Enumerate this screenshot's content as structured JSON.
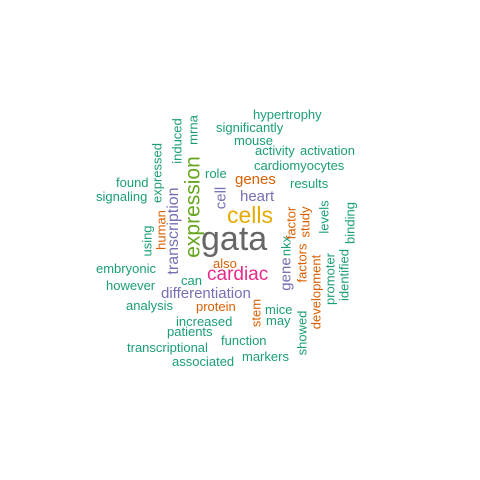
{
  "colors": {
    "teal": "#1b9e77",
    "orange": "#d95f02",
    "purple": "#7570b3",
    "magenta": "#e7298a",
    "green": "#66a61e",
    "gold": "#e6ab02",
    "gray": "#666666"
  },
  "words": {
    "gata": "gata",
    "cells": "cells",
    "expression": "expression",
    "cardiac": "cardiac",
    "transcription": "transcription",
    "differentiation": "differentiation",
    "heart": "heart",
    "genes": "genes",
    "cell": "cell",
    "gene": "gene",
    "hypertrophy": "hypertrophy",
    "significantly": "significantly",
    "mouse": "mouse",
    "activity": "activity",
    "activation": "activation",
    "cardiomyocytes": "cardiomyocytes",
    "role": "role",
    "results": "results",
    "found": "found",
    "signaling": "signaling",
    "also": "also",
    "embryonic": "embryonic",
    "can": "can",
    "however": "however",
    "analysis": "analysis",
    "protein": "protein",
    "mice": "mice",
    "increased": "increased",
    "may": "may",
    "patients": "patients",
    "function": "function",
    "transcriptional": "transcriptional",
    "markers": "markers",
    "associated": "associated",
    "nkx": "nkx",
    "factor": "factor",
    "factors": "factors",
    "study": "study",
    "development": "development",
    "levels": "levels",
    "promoter": "promoter",
    "binding": "binding",
    "identified": "identified",
    "showed": "showed",
    "stem": "stem",
    "human": "human",
    "using": "using",
    "expressed": "expressed",
    "induced": "induced",
    "mrna": "mrna"
  }
}
